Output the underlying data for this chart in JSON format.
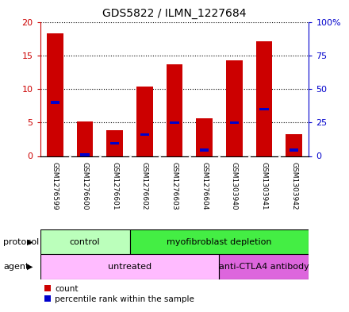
{
  "title": "GDS5822 / ILMN_1227684",
  "samples": [
    "GSM1276599",
    "GSM1276600",
    "GSM1276601",
    "GSM1276602",
    "GSM1276603",
    "GSM1276604",
    "GSM1303940",
    "GSM1303941",
    "GSM1303942"
  ],
  "counts": [
    18.3,
    5.2,
    3.9,
    10.4,
    13.7,
    5.6,
    14.3,
    17.1,
    3.3
  ],
  "percentile_ranks": [
    40.0,
    1.0,
    9.5,
    16.0,
    25.0,
    4.5,
    25.0,
    35.0,
    4.5
  ],
  "ylim_left": [
    0,
    20
  ],
  "ylim_right": [
    0,
    100
  ],
  "yticks_left": [
    0,
    5,
    10,
    15,
    20
  ],
  "ytick_labels_left": [
    "0",
    "5",
    "10",
    "15",
    "20"
  ],
  "ytick_labels_right": [
    "0",
    "25",
    "50",
    "75",
    "100%"
  ],
  "bar_color": "#cc0000",
  "percentile_color": "#0000cc",
  "left_axis_color": "#cc0000",
  "right_axis_color": "#0000cc",
  "protocol_groups": [
    {
      "label": "control",
      "start": 0,
      "end": 3,
      "color": "#bbffbb"
    },
    {
      "label": "myofibroblast depletion",
      "start": 3,
      "end": 9,
      "color": "#44ee44"
    }
  ],
  "agent_groups": [
    {
      "label": "untreated",
      "start": 0,
      "end": 6,
      "color": "#ffbbff"
    },
    {
      "label": "anti-CTLA4 antibody",
      "start": 6,
      "end": 9,
      "color": "#dd66dd"
    }
  ],
  "protocol_label": "protocol",
  "agent_label": "agent",
  "legend_count_label": "count",
  "legend_percentile_label": "percentile rank within the sample",
  "sample_bg_color": "#dddddd"
}
